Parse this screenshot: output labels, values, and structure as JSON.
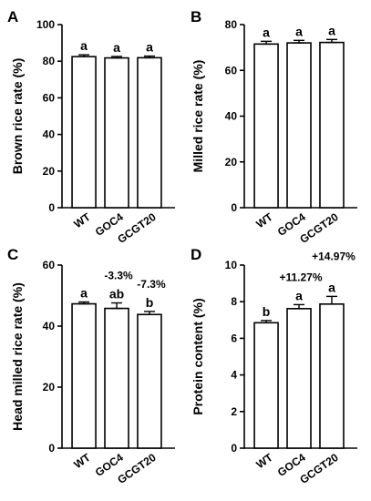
{
  "chart_data": [
    {
      "type": "bar",
      "panel": "A",
      "categories": [
        "WT",
        "GOC4",
        "GCGT20"
      ],
      "values": [
        82.5,
        81.8,
        81.9
      ],
      "errors": [
        1.0,
        0.8,
        0.9
      ],
      "significance": [
        "a",
        "a",
        "a"
      ],
      "annotations": [
        "",
        "",
        ""
      ],
      "ylabel": "Brown rice rate (%)",
      "ylim": [
        0,
        100
      ],
      "yticks": [
        0,
        20,
        40,
        60,
        80,
        100
      ]
    },
    {
      "type": "bar",
      "panel": "B",
      "categories": [
        "WT",
        "GOC4",
        "GCGT20"
      ],
      "values": [
        71.5,
        72.0,
        72.2
      ],
      "errors": [
        1.2,
        1.1,
        1.3
      ],
      "significance": [
        "a",
        "a",
        "a"
      ],
      "annotations": [
        "",
        "",
        ""
      ],
      "ylabel": "Milled rice rate (%)",
      "ylim": [
        0,
        80
      ],
      "yticks": [
        0,
        20,
        40,
        60,
        80
      ]
    },
    {
      "type": "bar",
      "panel": "C",
      "categories": [
        "WT",
        "GOC4",
        "GCGT20"
      ],
      "values": [
        47.3,
        45.8,
        43.8
      ],
      "errors": [
        0.6,
        1.8,
        1.0
      ],
      "significance": [
        "a",
        "ab",
        "b"
      ],
      "annotations": [
        "",
        "-3.3%",
        "-7.3%"
      ],
      "ylabel": "Head milled rice rate (%)",
      "ylim": [
        0,
        60
      ],
      "yticks": [
        0,
        20,
        40,
        60
      ]
    },
    {
      "type": "bar",
      "panel": "D",
      "categories": [
        "WT",
        "GOC4",
        "GCGT20"
      ],
      "values": [
        6.85,
        7.62,
        7.87
      ],
      "errors": [
        0.12,
        0.22,
        0.42
      ],
      "significance": [
        "b",
        "a",
        "a"
      ],
      "annotations": [
        "",
        "+11.27%",
        "+14.97%"
      ],
      "ylabel": "Protein content (%)",
      "ylim": [
        0,
        10
      ],
      "yticks": [
        0,
        2,
        4,
        6,
        8,
        10
      ]
    }
  ]
}
